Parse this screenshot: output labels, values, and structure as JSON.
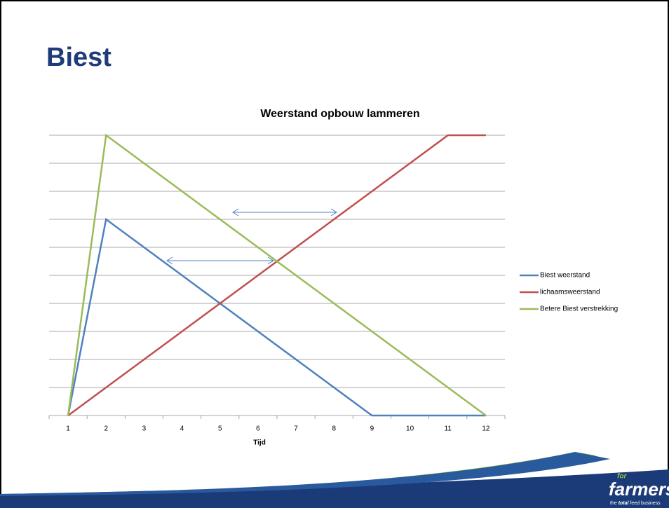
{
  "slide": {
    "title": "Biest"
  },
  "chart_data": {
    "type": "line",
    "title": "Weerstand opbouw lammeren",
    "x_label": "Tijd",
    "categories": [
      1,
      2,
      3,
      4,
      5,
      6,
      7,
      8,
      9,
      10,
      11,
      12
    ],
    "series": [
      {
        "name": "Biest weerstand",
        "color": "#4f81bd",
        "values": [
          0,
          7,
          6,
          5,
          4,
          3,
          2,
          1,
          0,
          0,
          0,
          0
        ]
      },
      {
        "name": "lichaamsweerstand",
        "color": "#c0504d",
        "values": [
          0,
          1,
          2,
          3,
          4,
          5,
          6,
          7,
          8,
          9,
          10,
          10
        ]
      },
      {
        "name": "Betere Biest verstrekking",
        "color": "#9bbb59",
        "values": [
          0,
          10,
          9,
          8,
          7,
          6,
          5,
          4,
          3,
          2,
          1,
          0
        ]
      }
    ],
    "ylim": [
      0,
      10
    ],
    "yticks": [
      0,
      1,
      2,
      3,
      4,
      5,
      6,
      7,
      8,
      9,
      10
    ],
    "grid": true,
    "legend": "right"
  },
  "logo": {
    "prefix": "for",
    "name": "farmers",
    "tagline_start": "the",
    "tagline_bold": "total",
    "tagline_end": "feed business"
  }
}
